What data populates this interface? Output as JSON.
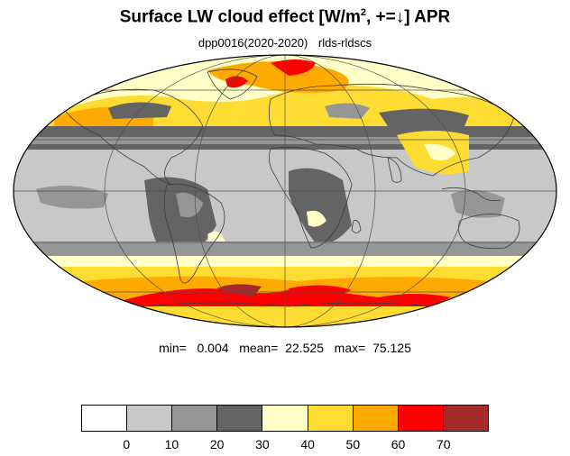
{
  "title": {
    "main": "Surface LW cloud effect [W/m",
    "sup": "2",
    "rest": ", +=↓]  APR"
  },
  "subtitle": {
    "run": "dpp0016(2020-2020)",
    "variable": "rlds-rldscs"
  },
  "stats": {
    "text": "min=   0.004   mean=  22.525   max=  75.125"
  },
  "colorbar": {
    "colors": [
      "#ffffff",
      "#c8c8c8",
      "#969696",
      "#646464",
      "#ffffc8",
      "#ffdc32",
      "#ffaa00",
      "#ff0000",
      "#a52a2a"
    ],
    "tick_labels": [
      "0",
      "10",
      "20",
      "30",
      "40",
      "50",
      "60",
      "70"
    ]
  },
  "map": {
    "projection": "mollweide",
    "graticule": true
  }
}
